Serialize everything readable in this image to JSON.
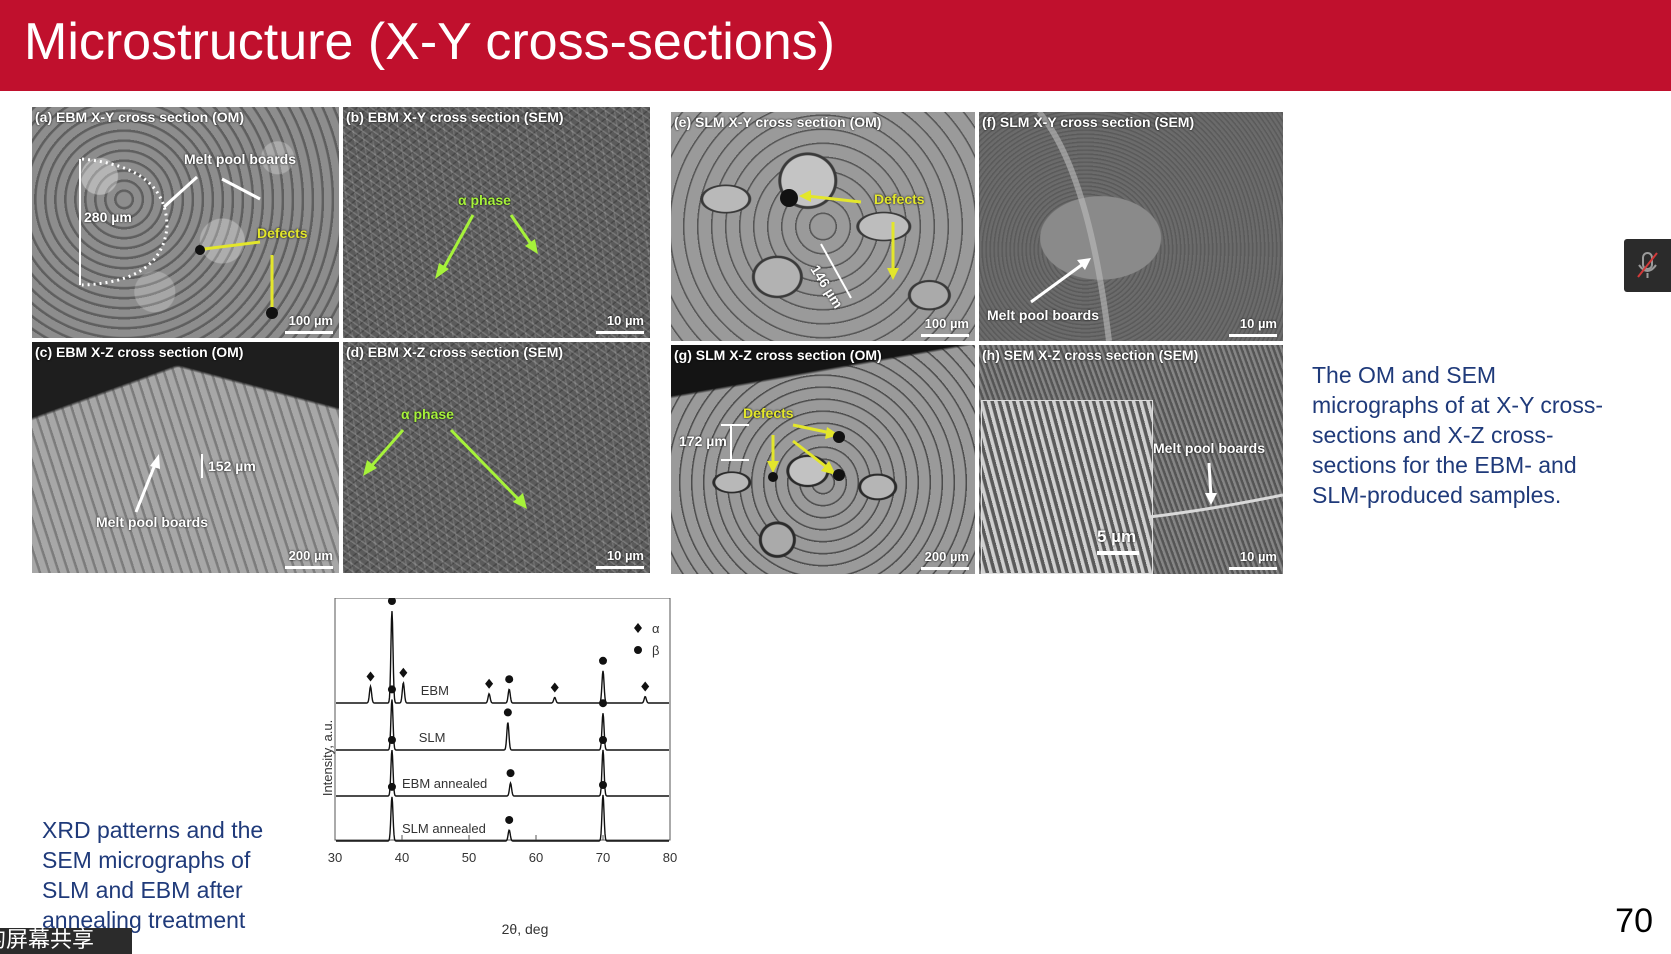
{
  "slide": {
    "title": "Microstructure (X-Y cross-sections)",
    "slide_number": "70"
  },
  "micrographs": {
    "a": {
      "label": "(a) EBM X-Y cross section (OM)",
      "scale": "100 µm",
      "notes": [
        "Melt pool boards",
        "280 µm",
        "Defects"
      ]
    },
    "b": {
      "label": "(b)  EBM X-Y cross section (SEM)",
      "scale": "10 µm",
      "notes": [
        "α phase"
      ]
    },
    "c": {
      "label": "(c)  EBM X-Z cross section (OM)",
      "scale": "200 µm",
      "notes": [
        "152 µm",
        "Melt pool boards"
      ]
    },
    "d": {
      "label": "(d)  EBM X-Z cross section (SEM)",
      "scale": "10 µm",
      "notes": [
        "α phase"
      ]
    },
    "e": {
      "label": "(e)  SLM X-Y cross section (OM)",
      "scale": "100 µm",
      "notes": [
        "Defects",
        "146 µm"
      ]
    },
    "f": {
      "label": "(f) SLM X-Y cross section (SEM)",
      "scale": "10 µm",
      "notes": [
        "Melt pool boards"
      ]
    },
    "g": {
      "label": "(g) SLM X-Z cross section (OM)",
      "scale": "200 µm",
      "notes": [
        "Defects",
        "172 µm"
      ]
    },
    "h": {
      "label": "(h) SEM X-Z cross section (SEM)",
      "scale": "10 µm",
      "notes": [
        "Melt pool boards",
        "5 µm"
      ]
    }
  },
  "caption_right": "The OM and SEM micrographs of at X-Y cross-sections and X-Z cross-sections for the EBM- and SLM-produced samples.",
  "caption_left": "XRD patterns and the SEM micrographs of SLM and EBM after annealing treatment",
  "screen_share": {
    "text": "的屏幕共享",
    "mic_icon": "mic-off-icon"
  },
  "chart_data": {
    "type": "line",
    "xlabel": "2θ, deg",
    "ylabel": "Intensity, a.u.",
    "xlim": [
      30,
      80
    ],
    "xticks": [
      "30",
      "40",
      "50",
      "60",
      "70",
      "80"
    ],
    "legend": [
      {
        "symbol": "diamond",
        "name": "α"
      },
      {
        "symbol": "circle",
        "name": "β"
      }
    ],
    "legend_position": "top-right",
    "series": [
      {
        "name": "EBM",
        "peaks": [
          {
            "x": 35.3,
            "h": 0.18
          },
          {
            "x": 38.5,
            "h": 1.0
          },
          {
            "x": 40.2,
            "h": 0.22
          },
          {
            "x": 53.0,
            "h": 0.1
          },
          {
            "x": 56.0,
            "h": 0.15
          },
          {
            "x": 62.8,
            "h": 0.06
          },
          {
            "x": 70.0,
            "h": 0.35
          },
          {
            "x": 76.3,
            "h": 0.07
          }
        ],
        "markers": [
          {
            "x": 35.3,
            "symbol": "diamond"
          },
          {
            "x": 38.5,
            "symbol": "circle"
          },
          {
            "x": 40.2,
            "symbol": "diamond"
          },
          {
            "x": 53.0,
            "symbol": "diamond"
          },
          {
            "x": 56.0,
            "symbol": "circle"
          },
          {
            "x": 62.8,
            "symbol": "diamond"
          },
          {
            "x": 70.0,
            "symbol": "circle"
          },
          {
            "x": 76.3,
            "symbol": "diamond"
          }
        ]
      },
      {
        "name": "SLM",
        "peaks": [
          {
            "x": 38.5,
            "h": 0.55
          },
          {
            "x": 55.8,
            "h": 0.3
          },
          {
            "x": 70.0,
            "h": 0.4
          }
        ],
        "markers": [
          {
            "x": 38.5,
            "symbol": "circle"
          },
          {
            "x": 55.8,
            "symbol": "circle"
          },
          {
            "x": 70.0,
            "symbol": "circle"
          }
        ]
      },
      {
        "name": "EBM annealed",
        "peaks": [
          {
            "x": 38.5,
            "h": 0.5
          },
          {
            "x": 56.2,
            "h": 0.14
          },
          {
            "x": 70.0,
            "h": 0.5
          }
        ],
        "markers": [
          {
            "x": 38.5,
            "symbol": "circle"
          },
          {
            "x": 56.2,
            "symbol": "circle"
          },
          {
            "x": 70.0,
            "symbol": "circle"
          }
        ]
      },
      {
        "name": "SLM annealed",
        "peaks": [
          {
            "x": 38.5,
            "h": 0.48
          },
          {
            "x": 56.0,
            "h": 0.12
          },
          {
            "x": 70.0,
            "h": 0.5
          }
        ],
        "markers": [
          {
            "x": 38.5,
            "symbol": "circle"
          },
          {
            "x": 56.0,
            "symbol": "circle"
          },
          {
            "x": 70.0,
            "symbol": "circle"
          }
        ]
      }
    ]
  },
  "colors": {
    "title_bar": "#c0102d",
    "caption": "#1f3a7a",
    "annot_yellow": "#e3e62b",
    "annot_green": "#a6f23a"
  }
}
